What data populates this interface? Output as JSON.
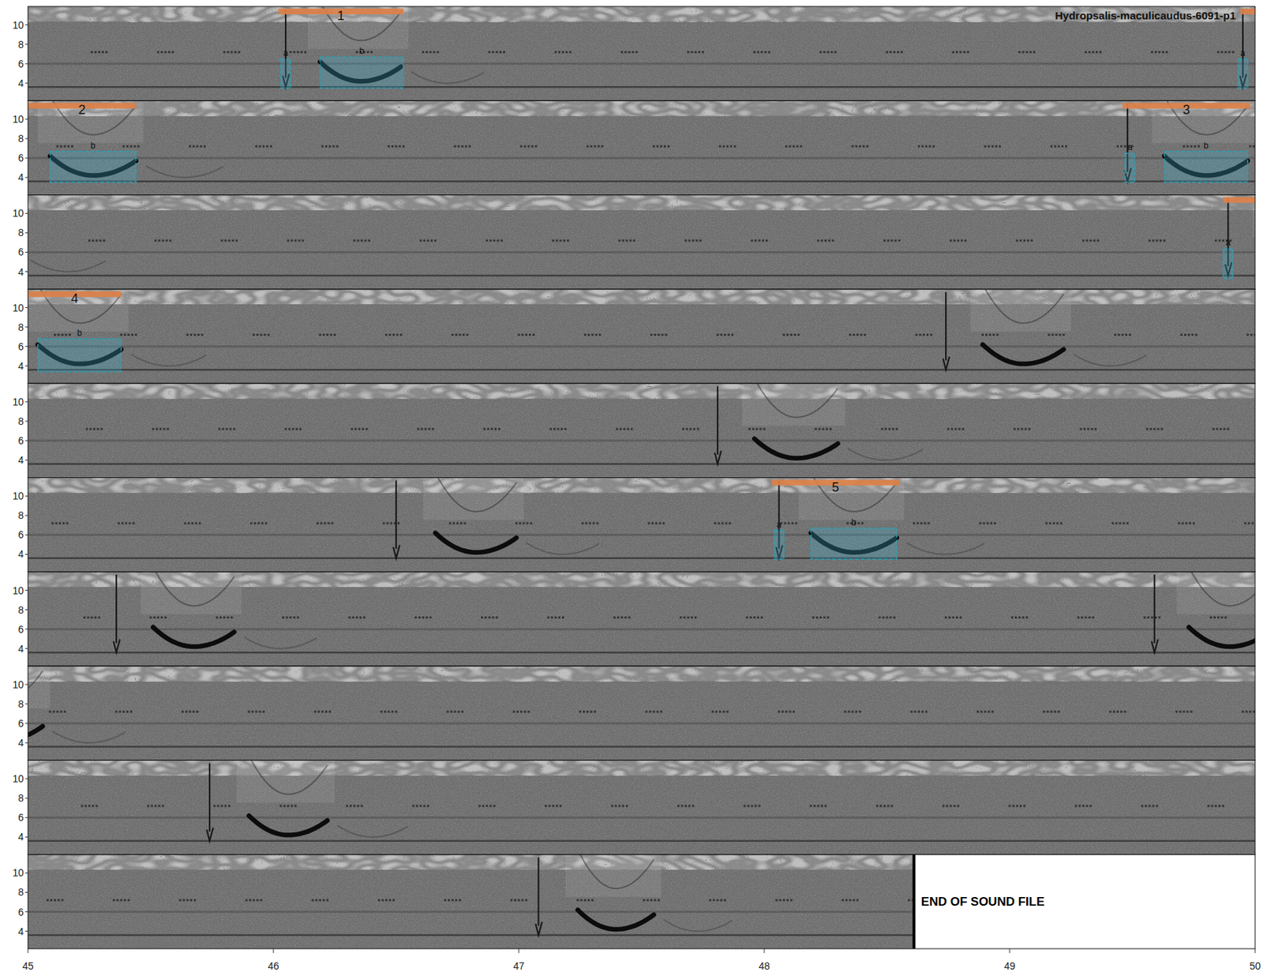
{
  "chart_data": {
    "type": "spectrogram",
    "title": "Hydropsalis-maculicaudus-6091-p1",
    "xlim": [
      45,
      50
    ],
    "xticks": [
      45,
      46,
      47,
      48,
      49,
      50
    ],
    "ylim": [
      2.2,
      11.9
    ],
    "yticks": [
      4,
      6,
      8,
      10
    ],
    "row_starts": [
      0,
      5,
      10,
      15,
      20,
      25,
      30,
      35,
      40,
      45
    ],
    "end_of_file": 48.61,
    "end_label": "END OF SOUND FILE",
    "spike_khz": [
      11.6,
      3.6
    ],
    "sweep_khz": [
      6.2,
      4.2,
      5.7
    ],
    "background_bands_khz": [
      3.6,
      6.0
    ],
    "insect_khz": 7.2,
    "insect_start": 0.26,
    "insect_period": 0.27,
    "calls": [
      {
        "a": 1.05,
        "b": [
          1.19,
          1.52
        ]
      },
      {
        "a": 4.95,
        "b": [
          5.09,
          5.44
        ]
      },
      {
        "a": 9.48,
        "b": [
          9.63,
          9.97
        ]
      },
      {
        "a": 14.89,
        "b": [
          15.04,
          15.38
        ]
      },
      {
        "a": 18.74,
        "b": [
          18.89,
          19.22
        ]
      },
      {
        "a": 22.81,
        "b": [
          22.96,
          23.3
        ]
      },
      {
        "a": 26.5,
        "b": [
          26.66,
          26.99
        ]
      },
      {
        "a": 28.06,
        "b": [
          28.19,
          28.54
        ]
      },
      {
        "a": 30.36,
        "b": [
          30.51,
          30.84
        ]
      },
      {
        "a": 34.59,
        "b": [
          34.73,
          35.06
        ]
      },
      {
        "a": 40.74,
        "b": [
          40.9,
          41.22
        ]
      },
      {
        "a": 47.08,
        "b": [
          47.24,
          47.55
        ]
      }
    ],
    "annotations": [
      {
        "label": "1",
        "start": 1.02,
        "end": 1.53,
        "boxes": [
          {
            "label": "a",
            "x": [
              1.03,
              1.07
            ],
            "y": [
              3.5,
              6.5
            ]
          },
          {
            "label": "b",
            "x": [
              1.19,
              1.53
            ],
            "y": [
              3.5,
              6.7
            ]
          }
        ]
      },
      {
        "label": "2",
        "start": 4.94,
        "end": 5.44,
        "boxes": [
          {
            "label": "a",
            "x": [
              4.93,
              4.97
            ],
            "y": [
              3.5,
              6.5
            ]
          },
          {
            "label": "b",
            "x": [
              5.09,
              5.44
            ],
            "y": [
              3.5,
              6.7
            ]
          }
        ]
      },
      {
        "label": "3",
        "start": 9.46,
        "end": 9.98,
        "boxes": [
          {
            "label": "a",
            "x": [
              9.47,
              9.51
            ],
            "y": [
              3.5,
              6.5
            ]
          },
          {
            "label": "b",
            "x": [
              9.63,
              9.97
            ],
            "y": [
              3.5,
              6.7
            ]
          }
        ]
      },
      {
        "label": "4",
        "start": 14.87,
        "end": 15.38,
        "boxes": [
          {
            "label": "a",
            "x": [
              14.87,
              14.91
            ],
            "y": [
              3.3,
              6.4
            ]
          },
          {
            "label": "b",
            "x": [
              15.04,
              15.38
            ],
            "y": [
              3.4,
              6.8
            ]
          }
        ]
      },
      {
        "label": "5",
        "start": 28.03,
        "end": 28.55,
        "boxes": [
          {
            "label": "a",
            "x": [
              28.04,
              28.08
            ],
            "y": [
              3.5,
              6.5
            ]
          },
          {
            "label": "b",
            "x": [
              28.19,
              28.54
            ],
            "y": [
              3.5,
              6.7
            ]
          }
        ]
      }
    ]
  }
}
